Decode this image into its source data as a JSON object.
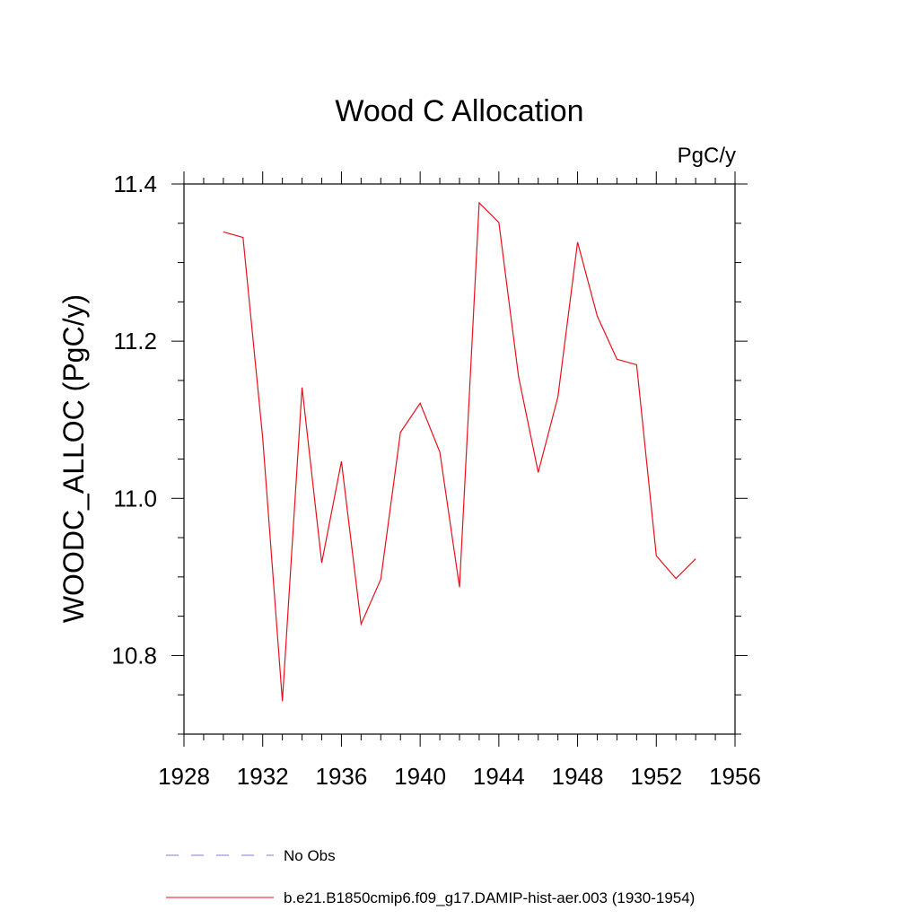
{
  "chart_data": {
    "type": "line",
    "title": "Wood C Allocation",
    "units_label": "PgC/y",
    "ylabel": "WOODC_ALLOC  (PgC/y)",
    "xlabel": "",
    "xlim": [
      1928,
      1956
    ],
    "ylim": [
      10.7,
      11.4
    ],
    "x_ticks": [
      1928,
      1932,
      1936,
      1940,
      1944,
      1948,
      1952,
      1956
    ],
    "y_ticks": [
      10.8,
      11.0,
      11.2,
      11.4
    ],
    "grid": false,
    "legend_position": "bottom",
    "legend": [
      {
        "label": "No Obs",
        "color": "#7b7bd6",
        "style": "dashed"
      },
      {
        "label": "b.e21.B1850cmip6.f09_g17.DAMIP-hist-aer.003 (1930-1954)",
        "color": "#e8101c",
        "style": "solid"
      }
    ],
    "series": [
      {
        "name": "b.e21.B1850cmip6.f09_g17.DAMIP-hist-aer.003 (1930-1954)",
        "color": "#e8101c",
        "x": [
          1930,
          1931,
          1932,
          1933,
          1934,
          1935,
          1936,
          1937,
          1938,
          1939,
          1940,
          1941,
          1942,
          1943,
          1944,
          1945,
          1946,
          1947,
          1948,
          1949,
          1950,
          1951,
          1952,
          1953,
          1954
        ],
        "y": [
          11.339,
          11.332,
          11.077,
          10.742,
          11.141,
          10.918,
          11.047,
          10.84,
          10.897,
          11.084,
          11.121,
          11.059,
          10.887,
          11.376,
          11.351,
          11.155,
          11.033,
          11.129,
          11.326,
          11.232,
          11.177,
          11.17,
          10.927,
          10.898,
          10.923
        ]
      }
    ]
  }
}
